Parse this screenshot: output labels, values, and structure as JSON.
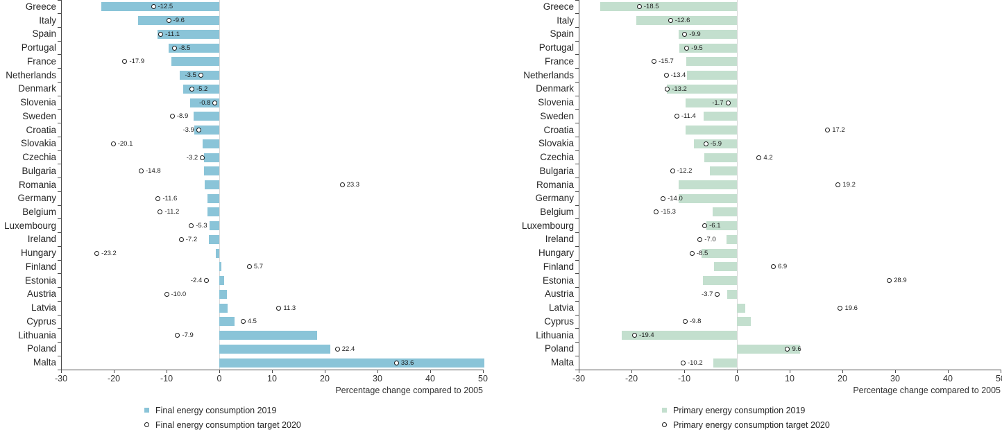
{
  "chart_data": [
    {
      "type": "bar",
      "orientation": "horizontal",
      "xlabel": "Percentage change compared to 2005",
      "xlim": [
        -30,
        50
      ],
      "xticks": [
        -30,
        -20,
        -10,
        0,
        10,
        20,
        30,
        40,
        50
      ],
      "grid": "zero-line-only",
      "legend_position": "bottom",
      "bar_color": "#8ac4d8",
      "marker_style": {
        "shape": "circle",
        "fill": "#ffffff",
        "stroke": "#1a1a1a"
      },
      "categories": [
        "Greece",
        "Italy",
        "Spain",
        "Portugal",
        "France",
        "Netherlands",
        "Denmark",
        "Slovenia",
        "Sweden",
        "Croatia",
        "Slovakia",
        "Czechia",
        "Bulgaria",
        "Romania",
        "Germany",
        "Belgium",
        "Luxembourg",
        "Ireland",
        "Hungary",
        "Finland",
        "Estonia",
        "Austria",
        "Latvia",
        "Cyprus",
        "Lithuania",
        "Poland",
        "Malta"
      ],
      "series": [
        {
          "name": "Final energy consumption 2019",
          "type": "bar",
          "values": [
            -22.4,
            -15.4,
            -11.7,
            -9.6,
            -9.1,
            -7.5,
            -6.9,
            -5.5,
            -4.9,
            -4.7,
            -3.2,
            -2.9,
            -2.9,
            -2.7,
            -2.2,
            -2.2,
            -1.9,
            -2.0,
            -0.6,
            0.4,
            0.9,
            1.4,
            1.6,
            2.9,
            18.6,
            21.0,
            50.2
          ]
        },
        {
          "name": "Final energy consumption target 2020",
          "type": "circle-marker",
          "values": [
            -12.5,
            -9.6,
            -11.1,
            -8.5,
            -17.9,
            -3.5,
            -5.2,
            -0.8,
            -8.9,
            -3.9,
            -20.1,
            -3.2,
            -14.8,
            23.3,
            -11.6,
            -11.2,
            -5.3,
            -7.2,
            -23.2,
            5.7,
            -2.4,
            -10.0,
            11.3,
            4.5,
            -7.9,
            22.4,
            33.6
          ],
          "label_side": [
            "right",
            "right",
            "right",
            "right",
            "right",
            "left",
            "right",
            "left",
            "right",
            "left",
            "right",
            "left",
            "right",
            "right",
            "right",
            "right",
            "right",
            "right",
            "right",
            "right",
            "left",
            "right",
            "right",
            "right",
            "right",
            "right",
            "right"
          ]
        }
      ]
    },
    {
      "type": "bar",
      "orientation": "horizontal",
      "xlabel": "Percentage change compared to 2005",
      "xlim": [
        -30,
        50
      ],
      "xticks": [
        -30,
        -20,
        -10,
        0,
        10,
        20,
        30,
        40,
        50
      ],
      "grid": "zero-line-only",
      "legend_position": "bottom",
      "bar_color": "#c3dfce",
      "marker_style": {
        "shape": "circle",
        "fill": "#ffffff",
        "stroke": "#1a1a1a"
      },
      "categories": [
        "Greece",
        "Italy",
        "Spain",
        "Portugal",
        "France",
        "Netherlands",
        "Denmark",
        "Slovenia",
        "Sweden",
        "Croatia",
        "Slovakia",
        "Czechia",
        "Bulgaria",
        "Romania",
        "Germany",
        "Belgium",
        "Luxembourg",
        "Ireland",
        "Hungary",
        "Finland",
        "Estonia",
        "Austria",
        "Latvia",
        "Cyprus",
        "Lithuania",
        "Poland",
        "Malta"
      ],
      "series": [
        {
          "name": "Primary energy consumption 2019",
          "type": "bar",
          "values": [
            -25.9,
            -19.1,
            -11.1,
            -10.9,
            -9.6,
            -9.5,
            -13.3,
            -9.8,
            -6.3,
            -9.8,
            -8.2,
            -6.2,
            -5.1,
            -11.1,
            -11.1,
            -4.6,
            -5.8,
            -2.0,
            -6.7,
            -4.4,
            -6.5,
            -1.8,
            1.6,
            2.6,
            -21.8,
            12.0,
            -4.5
          ]
        },
        {
          "name": "Primary energy consumption target 2020",
          "type": "circle-marker",
          "values": [
            -18.5,
            -12.6,
            -9.9,
            -9.5,
            -15.7,
            -13.4,
            -13.2,
            -1.7,
            -11.4,
            17.2,
            -5.9,
            4.2,
            -12.2,
            19.2,
            -14.0,
            -15.3,
            -6.1,
            -7.0,
            -8.5,
            6.9,
            28.9,
            -3.7,
            19.6,
            -9.8,
            -19.4,
            9.6,
            -10.2
          ],
          "label_side": [
            "right",
            "right",
            "right",
            "right",
            "right",
            "right",
            "right",
            "left",
            "right",
            "right",
            "right",
            "right",
            "right",
            "right",
            "right",
            "right",
            "right",
            "right",
            "right",
            "right",
            "right",
            "left",
            "right",
            "right",
            "right",
            "right",
            "right"
          ]
        }
      ]
    }
  ]
}
